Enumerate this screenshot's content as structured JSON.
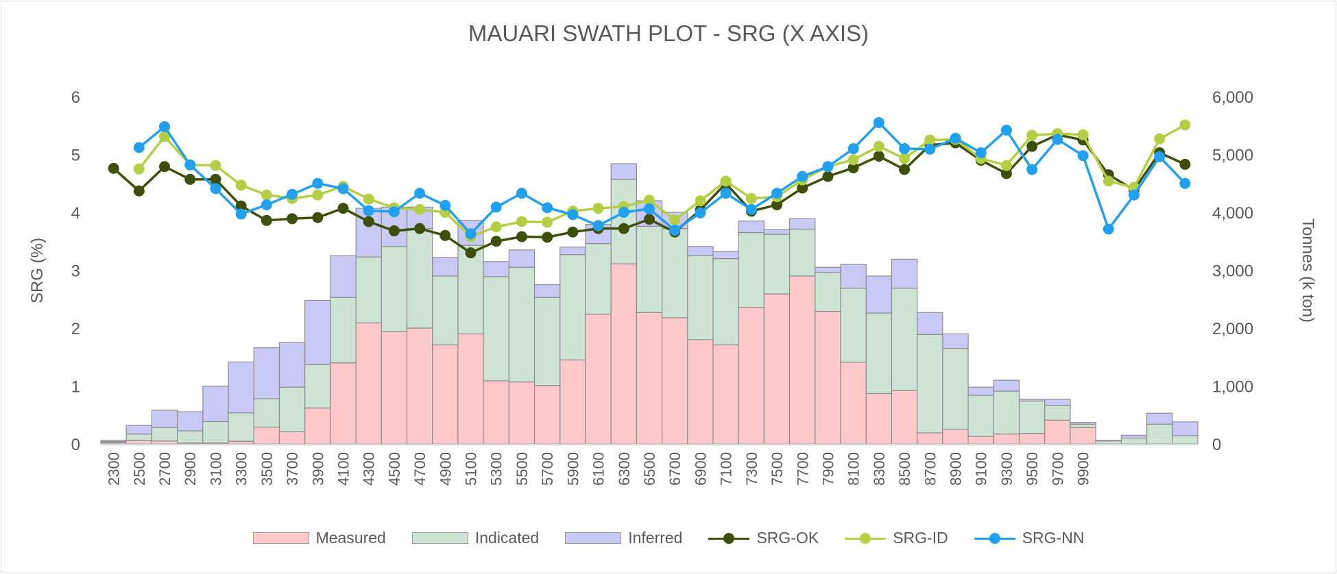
{
  "chart_data": {
    "type": "bar+line",
    "title": "MAUARI SWATH PLOT - SRG (X AXIS)",
    "ylabel": "SRG (%)",
    "y2label": "Tonnes (k ton)",
    "ylim": [
      0,
      6
    ],
    "y2lim": [
      0,
      6000
    ],
    "yticks": [
      "0",
      "1",
      "2",
      "3",
      "4",
      "5",
      "6"
    ],
    "y2ticks": [
      "0",
      "1,000",
      "2,000",
      "3,000",
      "4,000",
      "5,000",
      "6,000"
    ],
    "categories": [
      "2300",
      "2500",
      "2700",
      "2900",
      "3100",
      "3300",
      "3500",
      "3700",
      "3900",
      "4100",
      "4300",
      "4500",
      "4700",
      "4900",
      "5100",
      "5300",
      "5500",
      "5700",
      "5900",
      "6100",
      "6300",
      "6500",
      "6700",
      "6900",
      "7100",
      "7300",
      "7500",
      "7700",
      "7900",
      "8100",
      "8300",
      "8500",
      "8700",
      "8900",
      "9100",
      "9300",
      "9500",
      "9700",
      "9900",
      "",
      "",
      "",
      ""
    ],
    "bar_series": [
      {
        "name": "Measured",
        "color": "#ffc9c9",
        "values": [
          20,
          55,
          50,
          15,
          15,
          45,
          290,
          210,
          620,
          1400,
          2090,
          1940,
          2000,
          1710,
          1900,
          1090,
          1070,
          1010,
          1450,
          2240,
          3110,
          2270,
          2180,
          1800,
          1710,
          2360,
          2590,
          2900,
          2290,
          1410,
          870,
          920,
          190,
          250,
          130,
          170,
          180,
          410,
          280,
          0,
          0,
          0,
          0
        ]
      },
      {
        "name": "Indicated",
        "color": "#cde3d3",
        "values": [
          20,
          115,
          230,
          210,
          370,
          490,
          490,
          770,
          750,
          1130,
          1140,
          1470,
          1720,
          1190,
          1530,
          1800,
          1980,
          1520,
          1820,
          1220,
          1460,
          1490,
          1540,
          1450,
          1490,
          1290,
          1030,
          810,
          670,
          1280,
          1390,
          1770,
          1700,
          1400,
          710,
          740,
          560,
          250,
          60,
          50,
          100,
          340,
          140
        ]
      },
      {
        "name": "Inferred",
        "color": "#c9c9f5",
        "values": [
          20,
          150,
          300,
          330,
          610,
          880,
          880,
          770,
          1110,
          720,
          840,
          680,
          370,
          320,
          430,
          260,
          300,
          220,
          130,
          330,
          270,
          440,
          280,
          160,
          120,
          200,
          80,
          180,
          90,
          410,
          640,
          500,
          380,
          250,
          140,
          190,
          30,
          110,
          30,
          10,
          50,
          190,
          240
        ]
      }
    ],
    "line_series": [
      {
        "name": "SRG-OK",
        "color": "#3d4f0b",
        "values": [
          4.76,
          4.37,
          4.79,
          4.57,
          4.57,
          4.11,
          3.86,
          3.89,
          3.91,
          4.07,
          3.84,
          3.68,
          3.72,
          3.6,
          3.3,
          3.5,
          3.58,
          3.57,
          3.66,
          3.72,
          3.72,
          3.88,
          3.66,
          4.04,
          4.5,
          4.02,
          4.13,
          4.42,
          4.62,
          4.77,
          4.97,
          4.74,
          5.16,
          5.2,
          4.9,
          4.67,
          5.14,
          5.34,
          5.25,
          4.65,
          4.39,
          5.03,
          4.83
        ]
      },
      {
        "name": "SRG-ID",
        "color": "#b5cf45",
        "values": [
          null,
          4.75,
          5.31,
          4.82,
          4.81,
          4.47,
          4.3,
          4.24,
          4.3,
          4.45,
          4.23,
          4.08,
          4.05,
          4.0,
          3.58,
          3.75,
          3.84,
          3.83,
          4.02,
          4.07,
          4.1,
          4.21,
          3.87,
          4.2,
          4.54,
          4.24,
          4.27,
          4.56,
          4.79,
          4.91,
          5.14,
          4.93,
          5.25,
          5.26,
          4.93,
          4.81,
          5.33,
          5.36,
          5.34,
          4.54,
          4.43,
          5.27,
          5.51
        ]
      },
      {
        "name": "SRG-NN",
        "color": "#22a0f0",
        "values": [
          null,
          5.12,
          5.48,
          4.82,
          4.41,
          3.97,
          4.13,
          4.31,
          4.5,
          4.41,
          4.03,
          4.01,
          4.33,
          4.12,
          3.63,
          4.09,
          4.33,
          4.08,
          3.96,
          3.77,
          4.0,
          4.06,
          3.69,
          3.99,
          4.33,
          4.05,
          4.33,
          4.62,
          4.79,
          5.1,
          5.55,
          5.1,
          5.09,
          5.28,
          5.03,
          5.42,
          4.74,
          5.26,
          4.98,
          3.71,
          4.3,
          4.96,
          4.5
        ]
      }
    ],
    "legend_position": "bottom",
    "grid": false
  }
}
